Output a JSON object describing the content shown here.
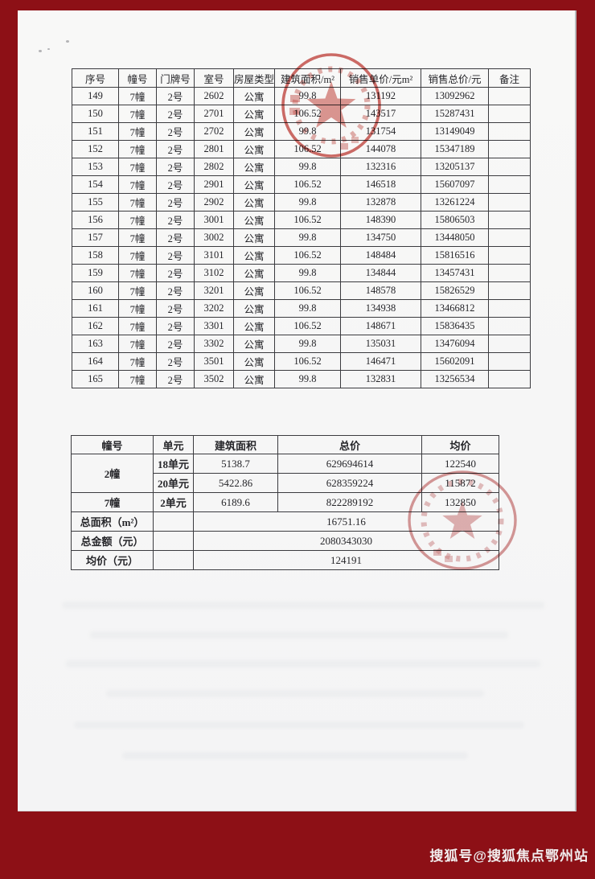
{
  "page": {
    "border_color": "#8d1016",
    "paper_color": "#f8f8f7",
    "stamp_top_color": "#c4443d",
    "stamp_bottom_color": "#d08181",
    "footer_text": "搜狐号@搜狐焦点鄂州站"
  },
  "table1": {
    "headers": [
      "序号",
      "幢号",
      "门牌号",
      "室号",
      "房屋类型",
      "建筑面积/m²",
      "销售单价/元m²",
      "销售总价/元",
      "备注"
    ],
    "rows": [
      [
        "149",
        "7幢",
        "2号",
        "2602",
        "公寓",
        "99.8",
        "131192",
        "13092962",
        ""
      ],
      [
        "150",
        "7幢",
        "2号",
        "2701",
        "公寓",
        "106.52",
        "143517",
        "15287431",
        ""
      ],
      [
        "151",
        "7幢",
        "2号",
        "2702",
        "公寓",
        "99.8",
        "131754",
        "13149049",
        ""
      ],
      [
        "152",
        "7幢",
        "2号",
        "2801",
        "公寓",
        "106.52",
        "144078",
        "15347189",
        ""
      ],
      [
        "153",
        "7幢",
        "2号",
        "2802",
        "公寓",
        "99.8",
        "132316",
        "13205137",
        ""
      ],
      [
        "154",
        "7幢",
        "2号",
        "2901",
        "公寓",
        "106.52",
        "146518",
        "15607097",
        ""
      ],
      [
        "155",
        "7幢",
        "2号",
        "2902",
        "公寓",
        "99.8",
        "132878",
        "13261224",
        ""
      ],
      [
        "156",
        "7幢",
        "2号",
        "3001",
        "公寓",
        "106.52",
        "148390",
        "15806503",
        ""
      ],
      [
        "157",
        "7幢",
        "2号",
        "3002",
        "公寓",
        "99.8",
        "134750",
        "13448050",
        ""
      ],
      [
        "158",
        "7幢",
        "2号",
        "3101",
        "公寓",
        "106.52",
        "148484",
        "15816516",
        ""
      ],
      [
        "159",
        "7幢",
        "2号",
        "3102",
        "公寓",
        "99.8",
        "134844",
        "13457431",
        ""
      ],
      [
        "160",
        "7幢",
        "2号",
        "3201",
        "公寓",
        "106.52",
        "148578",
        "15826529",
        ""
      ],
      [
        "161",
        "7幢",
        "2号",
        "3202",
        "公寓",
        "99.8",
        "134938",
        "13466812",
        ""
      ],
      [
        "162",
        "7幢",
        "2号",
        "3301",
        "公寓",
        "106.52",
        "148671",
        "15836435",
        ""
      ],
      [
        "163",
        "7幢",
        "2号",
        "3302",
        "公寓",
        "99.8",
        "135031",
        "13476094",
        ""
      ],
      [
        "164",
        "7幢",
        "2号",
        "3501",
        "公寓",
        "106.52",
        "146471",
        "15602091",
        ""
      ],
      [
        "165",
        "7幢",
        "2号",
        "3502",
        "公寓",
        "99.8",
        "132831",
        "13256534",
        ""
      ]
    ]
  },
  "table2": {
    "headers": [
      "幢号",
      "单元",
      "建筑面积",
      "总价",
      "均价"
    ],
    "building_rows": [
      {
        "building": "2幢",
        "building_rowspan": 2,
        "unit": "18单元",
        "area": "5138.7",
        "total": "629694614",
        "avg": "122540"
      },
      {
        "building": null,
        "building_rowspan": 0,
        "unit": "20单元",
        "area": "5422.86",
        "total": "628359224",
        "avg": "115872"
      },
      {
        "building": "7幢",
        "building_rowspan": 1,
        "unit": "2单元",
        "area": "6189.6",
        "total": "822289192",
        "avg": "132850"
      }
    ],
    "summary_rows": [
      {
        "label": "总面积（m²）",
        "value": "16751.16"
      },
      {
        "label": "总金额（元）",
        "value": "2080343030"
      },
      {
        "label": "均价（元）",
        "value": "124191"
      }
    ]
  }
}
